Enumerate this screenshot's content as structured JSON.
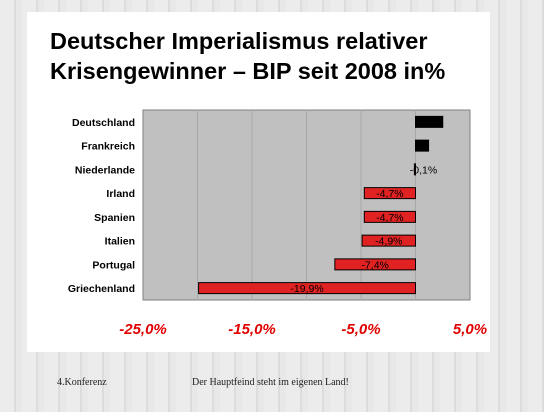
{
  "slide": {
    "title_line1": "Deutscher Imperialismus relativer",
    "title_line2": "Krisengewinner – BIP seit 2008 in%",
    "footer_left": "4.Konferenz",
    "footer_center": "Der Hauptfeind steht im eigenen Land!"
  },
  "colors": {
    "bar_fill": "#e02222",
    "bar_dark": "#000000",
    "plot_bg": "#c0c0c0",
    "axis_label": "#e00000"
  },
  "chart_data": {
    "type": "bar",
    "orientation": "horizontal",
    "title": "",
    "xlabel": "",
    "ylabel": "",
    "categories": [
      "Deutschland",
      "Frankreich",
      "Niederlande",
      "Irland",
      "Spanien",
      "Italien",
      "Portugal",
      "Griechenland"
    ],
    "values": [
      2.5,
      1.2,
      -0.1,
      -4.7,
      -4.7,
      -4.9,
      -7.4,
      -19.9
    ],
    "data_labels": [
      "",
      "",
      "-0,1%",
      "-4,7%",
      "-4,7%",
      "-4,9%",
      "-7,4%",
      "-19,9%"
    ],
    "xlim": [
      -25,
      5
    ],
    "x_ticks": [
      -25,
      -15,
      -5,
      5
    ],
    "x_tick_labels": [
      "-25,0%",
      "-15,0%",
      "-5,0%",
      "5,0%"
    ],
    "gridlines": true
  }
}
